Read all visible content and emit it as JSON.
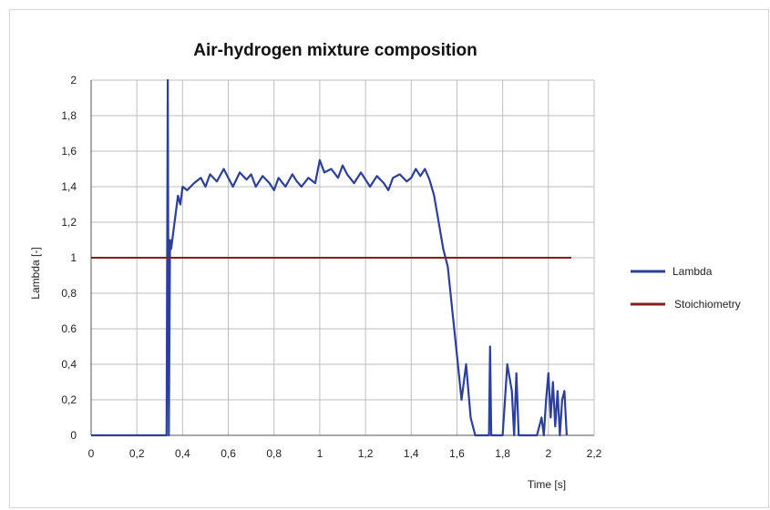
{
  "chart_data": {
    "type": "line",
    "title": "Air-hydrogen mixture composition",
    "xlabel": "Time [s]",
    "ylabel": "Lambda [-]",
    "xlim": [
      0,
      2.2
    ],
    "ylim": [
      0,
      2
    ],
    "x_ticks": [
      "0",
      "0,2",
      "0,4",
      "0,6",
      "0,8",
      "1",
      "1,2",
      "1,4",
      "1,6",
      "1,8",
      "2",
      "2,2"
    ],
    "y_ticks": [
      "0",
      "0,2",
      "0,4",
      "0.6",
      "0,8",
      "1",
      "1,2",
      "1,4",
      "1,6",
      "1,8",
      "2"
    ],
    "grid": true,
    "legend_position": "right",
    "series": [
      {
        "name": "Lambda",
        "color": "#2b3f9e",
        "x": [
          0.0,
          0.33,
          0.335,
          0.34,
          0.345,
          0.35,
          0.36,
          0.37,
          0.38,
          0.39,
          0.4,
          0.42,
          0.45,
          0.48,
          0.5,
          0.52,
          0.55,
          0.58,
          0.6,
          0.62,
          0.65,
          0.68,
          0.7,
          0.72,
          0.75,
          0.78,
          0.8,
          0.82,
          0.85,
          0.88,
          0.9,
          0.92,
          0.95,
          0.98,
          1.0,
          1.02,
          1.05,
          1.08,
          1.1,
          1.12,
          1.15,
          1.18,
          1.2,
          1.22,
          1.25,
          1.28,
          1.3,
          1.32,
          1.35,
          1.38,
          1.4,
          1.42,
          1.44,
          1.46,
          1.48,
          1.5,
          1.52,
          1.54,
          1.56,
          1.58,
          1.6,
          1.62,
          1.64,
          1.66,
          1.68,
          1.7,
          1.72,
          1.74,
          1.745,
          1.75,
          1.76,
          1.78,
          1.8,
          1.82,
          1.84,
          1.85,
          1.86,
          1.87,
          1.88,
          1.9,
          1.92,
          1.95,
          1.97,
          1.98,
          1.99,
          2.0,
          2.01,
          2.02,
          2.03,
          2.04,
          2.05,
          2.06,
          2.07,
          2.08
        ],
        "values": [
          0.0,
          0.0,
          2.0,
          0.0,
          1.1,
          1.05,
          1.15,
          1.25,
          1.35,
          1.3,
          1.4,
          1.38,
          1.42,
          1.45,
          1.4,
          1.47,
          1.43,
          1.5,
          1.45,
          1.4,
          1.48,
          1.44,
          1.47,
          1.4,
          1.46,
          1.42,
          1.38,
          1.45,
          1.4,
          1.47,
          1.43,
          1.4,
          1.45,
          1.42,
          1.55,
          1.48,
          1.5,
          1.45,
          1.52,
          1.47,
          1.42,
          1.48,
          1.44,
          1.4,
          1.46,
          1.42,
          1.38,
          1.45,
          1.47,
          1.43,
          1.45,
          1.5,
          1.46,
          1.5,
          1.44,
          1.35,
          1.2,
          1.05,
          0.95,
          0.7,
          0.45,
          0.2,
          0.4,
          0.1,
          0.0,
          0.0,
          0.0,
          0.0,
          0.5,
          0.0,
          0.0,
          0.0,
          0.0,
          0.4,
          0.25,
          0.0,
          0.35,
          0.0,
          0.0,
          0.0,
          0.0,
          0.0,
          0.1,
          0.0,
          0.2,
          0.35,
          0.1,
          0.3,
          0.05,
          0.25,
          0.0,
          0.2,
          0.25,
          0.0
        ]
      },
      {
        "name": "Stoichiometry",
        "color": "#8b1a1a",
        "x": [
          0.0,
          2.1
        ],
        "values": [
          1.0,
          1.0
        ]
      }
    ]
  }
}
